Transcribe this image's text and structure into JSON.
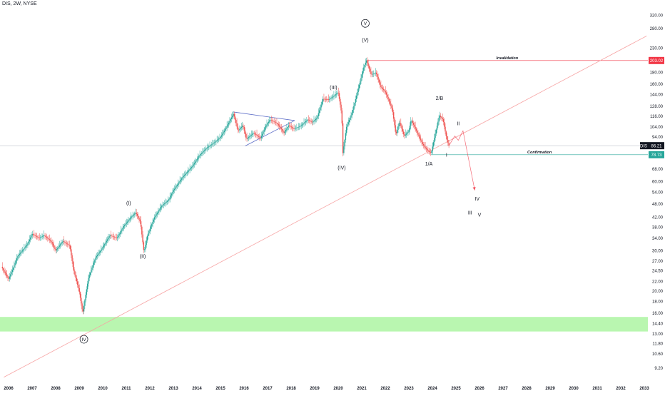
{
  "header": {
    "symbol": "DIS, 2W, NYSE"
  },
  "colors": {
    "up": "#26a69a",
    "down": "#ef5350",
    "support_zone": "#b9f6b0",
    "invalidation": "#f23645",
    "confirmation": "#26a69a",
    "price_tag": "#131722",
    "trendline": "#f7a4a4",
    "triangle": "#5b6cc7",
    "projection": "#f23645"
  },
  "chart_data": {
    "type": "candlestick",
    "title": "DIS, 2W, NYSE",
    "xlabel": "",
    "ylabel": "",
    "y_scale": "log",
    "ylim": [
      8.2,
      360
    ],
    "xlim": [
      2005.7,
      2033.1
    ],
    "x_ticks": [
      "2006",
      "2007",
      "2008",
      "2009",
      "2010",
      "2011",
      "2012",
      "2013",
      "2014",
      "2015",
      "2016",
      "2017",
      "2018",
      "2019",
      "2020",
      "2021",
      "2022",
      "2023",
      "2024",
      "2025",
      "2026",
      "2027",
      "2028",
      "2029",
      "2030",
      "2031",
      "2032",
      "2033"
    ],
    "y_ticks": [
      "320.00",
      "280.00",
      "230.00",
      "203.02",
      "180.00",
      "160.00",
      "144.00",
      "128.00",
      "116.00",
      "104.00",
      "94.00",
      "86.21",
      "78.73",
      "68.00",
      "60.00",
      "54.00",
      "48.00",
      "42.00",
      "38.00",
      "34.00",
      "30.00",
      "27.00",
      "24.50",
      "22.00",
      "20.00",
      "18.00",
      "16.00",
      "14.40",
      "13.00",
      "11.80",
      "10.60",
      "9.20"
    ],
    "price_path": [
      [
        2005.7,
        25.5
      ],
      [
        2006.0,
        22.5
      ],
      [
        2006.4,
        28.5
      ],
      [
        2006.8,
        32
      ],
      [
        2007.0,
        35.5
      ],
      [
        2007.3,
        34
      ],
      [
        2007.5,
        35
      ],
      [
        2007.8,
        33
      ],
      [
        2008.0,
        30
      ],
      [
        2008.3,
        33
      ],
      [
        2008.6,
        31.5
      ],
      [
        2008.75,
        25
      ],
      [
        2009.0,
        20
      ],
      [
        2009.15,
        16.0
      ],
      [
        2009.4,
        23
      ],
      [
        2009.7,
        28
      ],
      [
        2010.0,
        31
      ],
      [
        2010.3,
        35
      ],
      [
        2010.6,
        34
      ],
      [
        2010.9,
        38.5
      ],
      [
        2011.2,
        42
      ],
      [
        2011.4,
        44
      ],
      [
        2011.6,
        40
      ],
      [
        2011.75,
        29.5
      ],
      [
        2011.9,
        35
      ],
      [
        2012.2,
        42
      ],
      [
        2012.5,
        47
      ],
      [
        2012.8,
        50
      ],
      [
        2013.0,
        55
      ],
      [
        2013.4,
        63
      ],
      [
        2013.8,
        70
      ],
      [
        2014.1,
        78
      ],
      [
        2014.4,
        84
      ],
      [
        2014.8,
        90
      ],
      [
        2015.0,
        94
      ],
      [
        2015.3,
        106
      ],
      [
        2015.55,
        119
      ],
      [
        2015.75,
        100
      ],
      [
        2015.95,
        106
      ],
      [
        2016.1,
        92
      ],
      [
        2016.4,
        98
      ],
      [
        2016.7,
        93
      ],
      [
        2016.9,
        104
      ],
      [
        2017.1,
        112
      ],
      [
        2017.4,
        108
      ],
      [
        2017.7,
        98
      ],
      [
        2017.9,
        106
      ],
      [
        2018.1,
        102
      ],
      [
        2018.4,
        105
      ],
      [
        2018.7,
        112
      ],
      [
        2018.9,
        109
      ],
      [
        2019.1,
        114
      ],
      [
        2019.35,
        138
      ],
      [
        2019.6,
        137
      ],
      [
        2019.85,
        143
      ],
      [
        2020.0,
        148
      ],
      [
        2020.15,
        118
      ],
      [
        2020.2,
        80
      ],
      [
        2020.35,
        104
      ],
      [
        2020.6,
        121
      ],
      [
        2020.9,
        160
      ],
      [
        2021.1,
        192
      ],
      [
        2021.2,
        203
      ],
      [
        2021.4,
        176
      ],
      [
        2021.6,
        180
      ],
      [
        2021.8,
        156
      ],
      [
        2022.0,
        148
      ],
      [
        2022.3,
        124
      ],
      [
        2022.45,
        96
      ],
      [
        2022.6,
        110
      ],
      [
        2022.8,
        95
      ],
      [
        2023.0,
        100
      ],
      [
        2023.1,
        112
      ],
      [
        2023.4,
        96
      ],
      [
        2023.6,
        87
      ],
      [
        2023.8,
        82
      ],
      [
        2023.95,
        80
      ],
      [
        2024.1,
        95
      ],
      [
        2024.3,
        117
      ],
      [
        2024.45,
        112
      ],
      [
        2024.6,
        93
      ],
      [
        2024.7,
        86.21
      ]
    ],
    "invalidation": {
      "label": "Invalidation",
      "value": 203.02,
      "from_x": 2021.2
    },
    "confirmation": {
      "label": "Confirmation",
      "value": 78.73,
      "from_x": 2023.95
    },
    "current_price": {
      "label": "DIS",
      "value": 86.21
    },
    "support_zone": {
      "low": 13.3,
      "high": 15.4
    },
    "trendline": {
      "x1": 2005.8,
      "y1": 8.4,
      "x2": 2033.1,
      "y2": 260
    },
    "triangle": {
      "upper": [
        [
          2015.55,
          121
        ],
        [
          2018.15,
          111
        ]
      ],
      "lower": [
        [
          2016.05,
          86
        ],
        [
          2018.15,
          111
        ]
      ]
    },
    "projection_path": [
      [
        2024.7,
        86.21
      ],
      [
        2024.95,
        95
      ],
      [
        2025.1,
        91
      ],
      [
        2025.3,
        100
      ],
      [
        2025.8,
        55
      ]
    ],
    "wave_labels": [
      {
        "text": "V",
        "x": 2021.15,
        "y": 295,
        "circled": true
      },
      {
        "text": "(V)",
        "x": 2021.15,
        "y": 250,
        "circled": false
      },
      {
        "text": "(III)",
        "x": 2019.8,
        "y": 155,
        "circled": false
      },
      {
        "text": "(IV)",
        "x": 2020.15,
        "y": 69,
        "circled": false
      },
      {
        "text": "(I)",
        "x": 2011.1,
        "y": 48.5,
        "circled": false
      },
      {
        "text": "(II)",
        "x": 2011.7,
        "y": 28.4,
        "circled": false
      },
      {
        "text": "IV",
        "x": 2009.2,
        "y": 12.3,
        "circled": true
      },
      {
        "text": "2/B",
        "x": 2024.3,
        "y": 139,
        "circled": false
      },
      {
        "text": "1/A",
        "x": 2023.85,
        "y": 72,
        "circled": false
      },
      {
        "text": "II",
        "x": 2025.1,
        "y": 108,
        "circled": false
      },
      {
        "text": "I",
        "x": 2024.6,
        "y": 78.5,
        "circled": false
      },
      {
        "text": "IV",
        "x": 2025.9,
        "y": 50.5,
        "circled": false
      },
      {
        "text": "III",
        "x": 2025.6,
        "y": 44,
        "circled": false
      },
      {
        "text": "V",
        "x": 2026.0,
        "y": 43,
        "circled": false
      }
    ]
  }
}
